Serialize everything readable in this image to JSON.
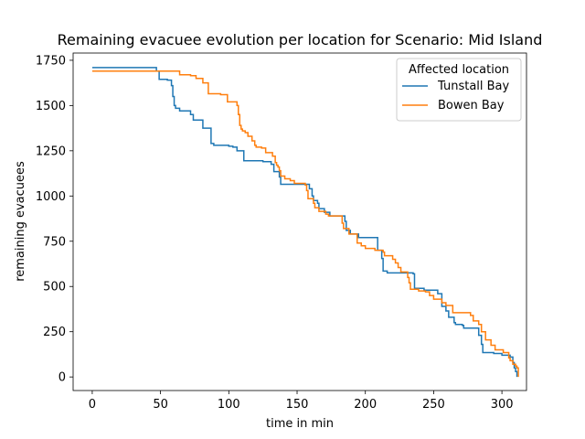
{
  "chart_data": {
    "type": "line",
    "step": true,
    "title": "Remaining evacuee evolution per location for Scenario: Mid Island",
    "xlabel": "time in min",
    "ylabel": "remaining evacuees",
    "xlim": [
      -14,
      318
    ],
    "ylim": [
      -75,
      1790
    ],
    "xticks": [
      0,
      50,
      100,
      150,
      200,
      250,
      300
    ],
    "yticks": [
      0,
      250,
      500,
      750,
      1000,
      1250,
      1500,
      1750
    ],
    "grid": false,
    "legend": {
      "title": "Affected location",
      "placement": "top-right"
    },
    "series": [
      {
        "name": "Tunstall Bay",
        "color": "#1f77b4",
        "points": [
          [
            0,
            1710
          ],
          [
            45,
            1710
          ],
          [
            47,
            1690
          ],
          [
            49,
            1645
          ],
          [
            55,
            1640
          ],
          [
            58,
            1610
          ],
          [
            59,
            1550
          ],
          [
            60,
            1500
          ],
          [
            61,
            1485
          ],
          [
            64,
            1470
          ],
          [
            72,
            1450
          ],
          [
            74,
            1420
          ],
          [
            80,
            1420
          ],
          [
            81,
            1375
          ],
          [
            86,
            1375
          ],
          [
            87,
            1290
          ],
          [
            89,
            1280
          ],
          [
            100,
            1275
          ],
          [
            103,
            1270
          ],
          [
            106,
            1250
          ],
          [
            111,
            1195
          ],
          [
            125,
            1190
          ],
          [
            131,
            1175
          ],
          [
            133,
            1135
          ],
          [
            137,
            1105
          ],
          [
            138,
            1065
          ],
          [
            152,
            1065
          ],
          [
            159,
            1040
          ],
          [
            161,
            1000
          ],
          [
            162,
            975
          ],
          [
            165,
            960
          ],
          [
            166,
            930
          ],
          [
            170,
            910
          ],
          [
            174,
            890
          ],
          [
            185,
            860
          ],
          [
            186,
            810
          ],
          [
            189,
            790
          ],
          [
            195,
            770
          ],
          [
            207,
            770
          ],
          [
            209,
            700
          ],
          [
            212,
            655
          ],
          [
            213,
            585
          ],
          [
            216,
            575
          ],
          [
            229,
            575
          ],
          [
            235,
            570
          ],
          [
            236,
            490
          ],
          [
            243,
            480
          ],
          [
            253,
            460
          ],
          [
            256,
            390
          ],
          [
            259,
            365
          ],
          [
            261,
            330
          ],
          [
            265,
            300
          ],
          [
            266,
            290
          ],
          [
            271,
            285
          ],
          [
            272,
            270
          ],
          [
            281,
            270
          ],
          [
            283,
            230
          ],
          [
            285,
            180
          ],
          [
            286,
            135
          ],
          [
            294,
            130
          ],
          [
            300,
            120
          ],
          [
            306,
            110
          ],
          [
            308,
            80
          ],
          [
            309,
            50
          ],
          [
            310,
            30
          ],
          [
            311,
            0
          ]
        ]
      },
      {
        "name": "Bowen Bay",
        "color": "#ff7f0e",
        "points": [
          [
            0,
            1690
          ],
          [
            50,
            1690
          ],
          [
            64,
            1670
          ],
          [
            72,
            1665
          ],
          [
            76,
            1650
          ],
          [
            81,
            1625
          ],
          [
            85,
            1565
          ],
          [
            94,
            1560
          ],
          [
            99,
            1520
          ],
          [
            106,
            1500
          ],
          [
            107,
            1450
          ],
          [
            108,
            1390
          ],
          [
            109,
            1370
          ],
          [
            110,
            1360
          ],
          [
            112,
            1350
          ],
          [
            114,
            1330
          ],
          [
            117,
            1305
          ],
          [
            119,
            1280
          ],
          [
            120,
            1270
          ],
          [
            124,
            1265
          ],
          [
            127,
            1240
          ],
          [
            132,
            1220
          ],
          [
            134,
            1185
          ],
          [
            135,
            1170
          ],
          [
            136,
            1160
          ],
          [
            137,
            1140
          ],
          [
            138,
            1110
          ],
          [
            141,
            1095
          ],
          [
            145,
            1085
          ],
          [
            148,
            1070
          ],
          [
            156,
            1060
          ],
          [
            157,
            1030
          ],
          [
            158,
            985
          ],
          [
            162,
            960
          ],
          [
            163,
            935
          ],
          [
            166,
            915
          ],
          [
            171,
            900
          ],
          [
            173,
            890
          ],
          [
            182,
            890
          ],
          [
            183,
            850
          ],
          [
            184,
            820
          ],
          [
            188,
            790
          ],
          [
            194,
            740
          ],
          [
            197,
            725
          ],
          [
            200,
            710
          ],
          [
            207,
            700
          ],
          [
            213,
            690
          ],
          [
            214,
            670
          ],
          [
            220,
            650
          ],
          [
            222,
            630
          ],
          [
            224,
            605
          ],
          [
            226,
            580
          ],
          [
            231,
            550
          ],
          [
            232,
            520
          ],
          [
            233,
            485
          ],
          [
            239,
            475
          ],
          [
            244,
            470
          ],
          [
            247,
            450
          ],
          [
            250,
            430
          ],
          [
            256,
            410
          ],
          [
            259,
            395
          ],
          [
            264,
            355
          ],
          [
            277,
            340
          ],
          [
            279,
            310
          ],
          [
            283,
            290
          ],
          [
            285,
            250
          ],
          [
            288,
            205
          ],
          [
            292,
            175
          ],
          [
            295,
            150
          ],
          [
            301,
            135
          ],
          [
            305,
            105
          ],
          [
            306,
            90
          ],
          [
            308,
            70
          ],
          [
            310,
            60
          ],
          [
            311,
            50
          ],
          [
            312,
            0
          ]
        ]
      }
    ]
  }
}
